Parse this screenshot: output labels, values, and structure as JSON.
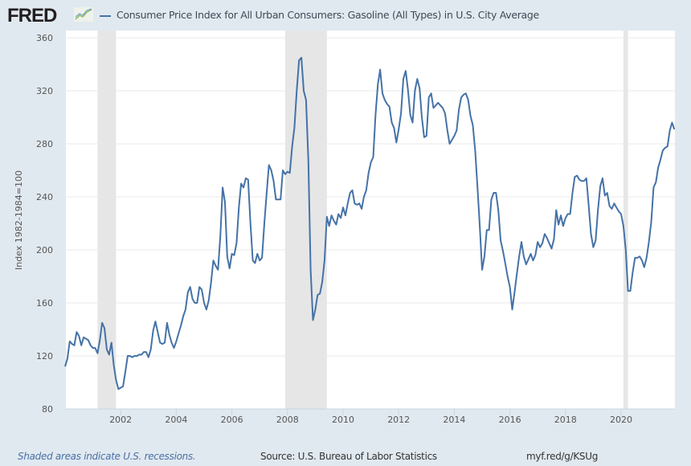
{
  "header": {
    "logo": "FRED",
    "title": "Consumer Price Index for All Urban Consumers: Gasoline (All Types) in U.S. City Average"
  },
  "footer": {
    "note": "Shaded areas indicate U.S. recessions.",
    "source": "Source: U.S. Bureau of Labor Statistics",
    "url": "myf.red/g/KSUg"
  },
  "chart_data": {
    "type": "line",
    "title": "Consumer Price Index for All Urban Consumers: Gasoline (All Types) in U.S. City Average",
    "xlabel": "",
    "ylabel": "Index 1982-1984=100",
    "ylim": [
      80,
      360
    ],
    "yticks": [
      "80",
      "120",
      "160",
      "200",
      "240",
      "280",
      "320",
      "360"
    ],
    "xticks": [
      "2002",
      "2004",
      "2006",
      "2008",
      "2010",
      "2012",
      "2014",
      "2016",
      "2018",
      "2020"
    ],
    "grid": true,
    "line_color": "#4572a7",
    "recession_color": "#e6e6e6",
    "recessions": [
      [
        "2001-03",
        "2001-11"
      ],
      [
        "2007-12",
        "2009-06"
      ],
      [
        "2020-02",
        "2020-04"
      ]
    ],
    "series": [
      {
        "name": "Consumer Price Index for All Urban Consumers: Gasoline (All Types) in U.S. City Average",
        "points": [
          [
            "2000-01",
            112
          ],
          [
            "2000-02",
            118
          ],
          [
            "2000-03",
            131
          ],
          [
            "2000-04",
            129
          ],
          [
            "2000-05",
            128
          ],
          [
            "2000-06",
            138
          ],
          [
            "2000-07",
            135
          ],
          [
            "2000-08",
            128
          ],
          [
            "2000-09",
            134
          ],
          [
            "2000-10",
            133
          ],
          [
            "2000-11",
            132
          ],
          [
            "2000-12",
            128
          ],
          [
            "2001-01",
            126
          ],
          [
            "2001-02",
            126
          ],
          [
            "2001-03",
            122
          ],
          [
            "2001-04",
            132
          ],
          [
            "2001-05",
            145
          ],
          [
            "2001-06",
            141
          ],
          [
            "2001-07",
            125
          ],
          [
            "2001-08",
            121
          ],
          [
            "2001-09",
            130
          ],
          [
            "2001-10",
            113
          ],
          [
            "2001-11",
            102
          ],
          [
            "2001-12",
            95
          ],
          [
            "2002-01",
            96
          ],
          [
            "2002-02",
            97
          ],
          [
            "2002-03",
            108
          ],
          [
            "2002-04",
            120
          ],
          [
            "2002-05",
            120
          ],
          [
            "2002-06",
            119
          ],
          [
            "2002-07",
            120
          ],
          [
            "2002-08",
            120
          ],
          [
            "2002-09",
            121
          ],
          [
            "2002-10",
            121
          ],
          [
            "2002-11",
            123
          ],
          [
            "2002-12",
            123
          ],
          [
            "2003-01",
            119
          ],
          [
            "2003-02",
            125
          ],
          [
            "2003-03",
            139
          ],
          [
            "2003-04",
            146
          ],
          [
            "2003-05",
            138
          ],
          [
            "2003-06",
            130
          ],
          [
            "2003-07",
            129
          ],
          [
            "2003-08",
            130
          ],
          [
            "2003-09",
            145
          ],
          [
            "2003-10",
            136
          ],
          [
            "2003-11",
            130
          ],
          [
            "2003-12",
            126
          ],
          [
            "2004-01",
            131
          ],
          [
            "2004-02",
            137
          ],
          [
            "2004-03",
            143
          ],
          [
            "2004-04",
            150
          ],
          [
            "2004-05",
            155
          ],
          [
            "2004-06",
            168
          ],
          [
            "2004-07",
            172
          ],
          [
            "2004-08",
            163
          ],
          [
            "2004-09",
            160
          ],
          [
            "2004-10",
            160
          ],
          [
            "2004-11",
            172
          ],
          [
            "2004-12",
            170
          ],
          [
            "2005-01",
            160
          ],
          [
            "2005-02",
            155
          ],
          [
            "2005-03",
            162
          ],
          [
            "2005-04",
            175
          ],
          [
            "2005-05",
            192
          ],
          [
            "2005-06",
            188
          ],
          [
            "2005-07",
            185
          ],
          [
            "2005-08",
            210
          ],
          [
            "2005-09",
            247
          ],
          [
            "2005-10",
            236
          ],
          [
            "2005-11",
            195
          ],
          [
            "2005-12",
            186
          ],
          [
            "2006-01",
            197
          ],
          [
            "2006-02",
            196
          ],
          [
            "2006-03",
            205
          ],
          [
            "2006-04",
            232
          ],
          [
            "2006-05",
            250
          ],
          [
            "2006-06",
            247
          ],
          [
            "2006-07",
            254
          ],
          [
            "2006-08",
            253
          ],
          [
            "2006-09",
            220
          ],
          [
            "2006-10",
            192
          ],
          [
            "2006-11",
            190
          ],
          [
            "2006-12",
            197
          ],
          [
            "2007-01",
            192
          ],
          [
            "2007-02",
            194
          ],
          [
            "2007-03",
            220
          ],
          [
            "2007-04",
            243
          ],
          [
            "2007-05",
            264
          ],
          [
            "2007-06",
            260
          ],
          [
            "2007-07",
            252
          ],
          [
            "2007-08",
            238
          ],
          [
            "2007-09",
            238
          ],
          [
            "2007-10",
            238
          ],
          [
            "2007-11",
            260
          ],
          [
            "2007-12",
            257
          ],
          [
            "2008-01",
            259
          ],
          [
            "2008-02",
            258
          ],
          [
            "2008-03",
            278
          ],
          [
            "2008-04",
            292
          ],
          [
            "2008-05",
            320
          ],
          [
            "2008-06",
            343
          ],
          [
            "2008-07",
            345
          ],
          [
            "2008-08",
            320
          ],
          [
            "2008-09",
            313
          ],
          [
            "2008-10",
            267
          ],
          [
            "2008-11",
            185
          ],
          [
            "2008-12",
            147
          ],
          [
            "2009-01",
            155
          ],
          [
            "2009-02",
            166
          ],
          [
            "2009-03",
            167
          ],
          [
            "2009-04",
            176
          ],
          [
            "2009-05",
            192
          ],
          [
            "2009-06",
            225
          ],
          [
            "2009-07",
            218
          ],
          [
            "2009-08",
            226
          ],
          [
            "2009-09",
            222
          ],
          [
            "2009-10",
            219
          ],
          [
            "2009-11",
            227
          ],
          [
            "2009-12",
            224
          ],
          [
            "2010-01",
            232
          ],
          [
            "2010-02",
            226
          ],
          [
            "2010-03",
            235
          ],
          [
            "2010-04",
            243
          ],
          [
            "2010-05",
            245
          ],
          [
            "2010-06",
            235
          ],
          [
            "2010-07",
            234
          ],
          [
            "2010-08",
            235
          ],
          [
            "2010-09",
            231
          ],
          [
            "2010-10",
            240
          ],
          [
            "2010-11",
            245
          ],
          [
            "2010-12",
            258
          ],
          [
            "2011-01",
            266
          ],
          [
            "2011-02",
            270
          ],
          [
            "2011-03",
            302
          ],
          [
            "2011-04",
            325
          ],
          [
            "2011-05",
            336
          ],
          [
            "2011-06",
            318
          ],
          [
            "2011-07",
            313
          ],
          [
            "2011-08",
            310
          ],
          [
            "2011-09",
            308
          ],
          [
            "2011-10",
            296
          ],
          [
            "2011-11",
            292
          ],
          [
            "2011-12",
            281
          ],
          [
            "2012-01",
            291
          ],
          [
            "2012-02",
            303
          ],
          [
            "2012-03",
            329
          ],
          [
            "2012-04",
            335
          ],
          [
            "2012-05",
            321
          ],
          [
            "2012-06",
            302
          ],
          [
            "2012-07",
            296
          ],
          [
            "2012-08",
            320
          ],
          [
            "2012-09",
            329
          ],
          [
            "2012-10",
            322
          ],
          [
            "2012-11",
            300
          ],
          [
            "2012-12",
            285
          ],
          [
            "2013-01",
            286
          ],
          [
            "2013-02",
            315
          ],
          [
            "2013-03",
            318
          ],
          [
            "2013-04",
            307
          ],
          [
            "2013-05",
            309
          ],
          [
            "2013-06",
            311
          ],
          [
            "2013-07",
            309
          ],
          [
            "2013-08",
            307
          ],
          [
            "2013-09",
            303
          ],
          [
            "2013-10",
            290
          ],
          [
            "2013-11",
            280
          ],
          [
            "2013-12",
            283
          ],
          [
            "2014-01",
            286
          ],
          [
            "2014-02",
            290
          ],
          [
            "2014-03",
            306
          ],
          [
            "2014-04",
            315
          ],
          [
            "2014-05",
            317
          ],
          [
            "2014-06",
            318
          ],
          [
            "2014-07",
            313
          ],
          [
            "2014-08",
            301
          ],
          [
            "2014-09",
            294
          ],
          [
            "2014-10",
            275
          ],
          [
            "2014-11",
            248
          ],
          [
            "2014-12",
            218
          ],
          [
            "2015-01",
            185
          ],
          [
            "2015-02",
            195
          ],
          [
            "2015-03",
            215
          ],
          [
            "2015-04",
            215
          ],
          [
            "2015-05",
            238
          ],
          [
            "2015-06",
            243
          ],
          [
            "2015-07",
            243
          ],
          [
            "2015-08",
            230
          ],
          [
            "2015-09",
            207
          ],
          [
            "2015-10",
            199
          ],
          [
            "2015-11",
            190
          ],
          [
            "2015-12",
            180
          ],
          [
            "2016-01",
            172
          ],
          [
            "2016-02",
            155
          ],
          [
            "2016-03",
            168
          ],
          [
            "2016-04",
            182
          ],
          [
            "2016-05",
            195
          ],
          [
            "2016-06",
            206
          ],
          [
            "2016-07",
            195
          ],
          [
            "2016-08",
            189
          ],
          [
            "2016-09",
            193
          ],
          [
            "2016-10",
            197
          ],
          [
            "2016-11",
            192
          ],
          [
            "2016-12",
            196
          ],
          [
            "2017-01",
            206
          ],
          [
            "2017-02",
            202
          ],
          [
            "2017-03",
            205
          ],
          [
            "2017-04",
            212
          ],
          [
            "2017-05",
            209
          ],
          [
            "2017-06",
            205
          ],
          [
            "2017-07",
            201
          ],
          [
            "2017-08",
            208
          ],
          [
            "2017-09",
            230
          ],
          [
            "2017-10",
            219
          ],
          [
            "2017-11",
            226
          ],
          [
            "2017-12",
            218
          ],
          [
            "2018-01",
            224
          ],
          [
            "2018-02",
            227
          ],
          [
            "2018-03",
            227
          ],
          [
            "2018-04",
            243
          ],
          [
            "2018-05",
            255
          ],
          [
            "2018-06",
            256
          ],
          [
            "2018-07",
            253
          ],
          [
            "2018-08",
            252
          ],
          [
            "2018-09",
            252
          ],
          [
            "2018-10",
            254
          ],
          [
            "2018-11",
            234
          ],
          [
            "2018-12",
            212
          ],
          [
            "2019-01",
            202
          ],
          [
            "2019-02",
            207
          ],
          [
            "2019-03",
            230
          ],
          [
            "2019-04",
            248
          ],
          [
            "2019-05",
            254
          ],
          [
            "2019-06",
            241
          ],
          [
            "2019-07",
            243
          ],
          [
            "2019-08",
            233
          ],
          [
            "2019-09",
            231
          ],
          [
            "2019-10",
            235
          ],
          [
            "2019-11",
            232
          ],
          [
            "2019-12",
            229
          ],
          [
            "2020-01",
            227
          ],
          [
            "2020-02",
            218
          ],
          [
            "2020-03",
            200
          ],
          [
            "2020-04",
            169
          ],
          [
            "2020-05",
            169
          ],
          [
            "2020-06",
            183
          ],
          [
            "2020-07",
            194
          ],
          [
            "2020-08",
            194
          ],
          [
            "2020-09",
            195
          ],
          [
            "2020-10",
            192
          ],
          [
            "2020-11",
            187
          ],
          [
            "2020-12",
            194
          ],
          [
            "2021-01",
            206
          ],
          [
            "2021-02",
            221
          ],
          [
            "2021-03",
            247
          ],
          [
            "2021-04",
            251
          ],
          [
            "2021-05",
            262
          ],
          [
            "2021-06",
            268
          ],
          [
            "2021-07",
            275
          ],
          [
            "2021-08",
            277
          ],
          [
            "2021-09",
            278
          ],
          [
            "2021-10",
            290
          ],
          [
            "2021-11",
            296
          ],
          [
            "2021-12",
            291
          ]
        ]
      }
    ]
  }
}
